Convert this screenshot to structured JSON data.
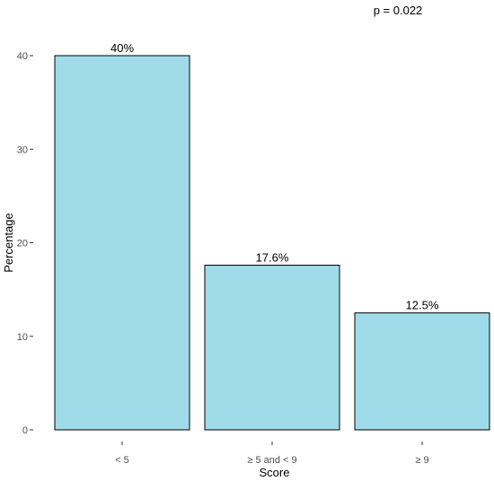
{
  "chart_data": {
    "type": "bar",
    "categories": [
      "< 5",
      "≥ 5 and < 9",
      "≥ 9"
    ],
    "values": [
      40,
      17.6,
      12.5
    ],
    "data_labels": [
      "40%",
      "17.6%",
      "12.5%"
    ],
    "title": "",
    "xlabel": "Score",
    "ylabel": "Percentage",
    "ylim": [
      0,
      40
    ],
    "yticks": [
      0,
      10,
      20,
      30,
      40
    ],
    "ytick_labels": [
      "0",
      "10",
      "20",
      "30",
      "40"
    ],
    "annotation": "p = 0.022",
    "grid": false,
    "legend": "none",
    "colors": {
      "bar_fill": "#a0dbea",
      "bar_stroke": "#000000",
      "axis": "#333333"
    }
  }
}
